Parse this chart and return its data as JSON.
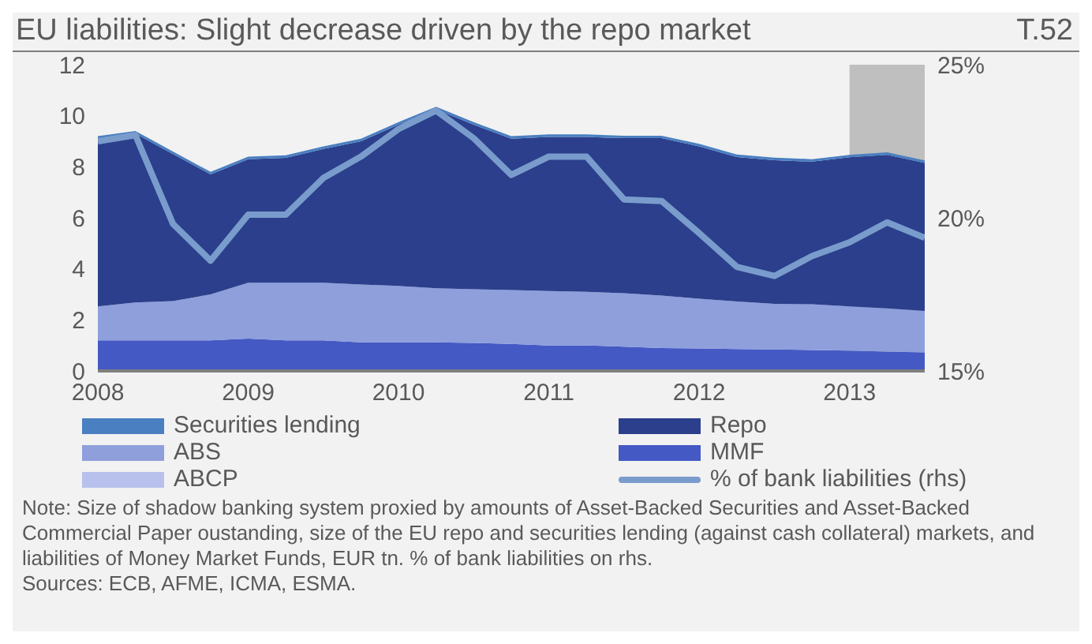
{
  "chart_data": {
    "type": "area",
    "title": "EU liabilities: Slight decrease driven by the repo market",
    "stacked": true,
    "x": [
      2008,
      2008.25,
      2008.5,
      2008.75,
      2009,
      2009.25,
      2009.5,
      2009.75,
      2010,
      2010.25,
      2010.5,
      2010.75,
      2011,
      2011.25,
      2011.5,
      2011.75,
      2012,
      2012.25,
      2012.5,
      2012.75,
      2013,
      2013.25,
      2013.5
    ],
    "series": [
      {
        "name": "MMF",
        "color": "#4459c4",
        "values": [
          1.2,
          1.2,
          1.2,
          1.2,
          1.27,
          1.2,
          1.2,
          1.12,
          1.12,
          1.12,
          1.1,
          1.06,
          1.0,
          1.0,
          0.95,
          0.9,
          0.88,
          0.86,
          0.84,
          0.82,
          0.8,
          0.76,
          0.73
        ]
      },
      {
        "name": "ABCP",
        "color": "#b8c0ec",
        "values": [
          null,
          null,
          null,
          null,
          null,
          null,
          null,
          null,
          null,
          null,
          null,
          null,
          null,
          null,
          null,
          null,
          null,
          null,
          null,
          null,
          null,
          null,
          null
        ]
      },
      {
        "name": "ABS",
        "color": "#8e9fdc",
        "values": [
          1.33,
          1.48,
          1.54,
          1.8,
          2.19,
          2.26,
          2.26,
          2.27,
          2.21,
          2.12,
          2.1,
          2.11,
          2.13,
          2.1,
          2.1,
          2.05,
          1.95,
          1.86,
          1.79,
          1.79,
          1.73,
          1.69,
          1.62
        ]
      },
      {
        "name": "Repo",
        "color": "#2b3f8c",
        "values": [
          6.57,
          6.62,
          5.76,
          4.7,
          4.84,
          4.89,
          5.24,
          5.61,
          6.32,
          7.01,
          6.45,
          5.93,
          6.04,
          6.07,
          6.07,
          6.17,
          5.97,
          5.66,
          5.63,
          5.59,
          5.84,
          6.02,
          5.8
        ]
      },
      {
        "name": "Securities lending",
        "color": "#4a7fc1",
        "values": [
          0.1,
          0.1,
          0.1,
          0.1,
          0.1,
          0.1,
          0.1,
          0.1,
          0.1,
          0.1,
          0.1,
          0.1,
          0.1,
          0.1,
          0.1,
          0.1,
          0.1,
          0.1,
          0.1,
          0.1,
          0.1,
          0.1,
          0.1
        ]
      },
      {
        "name": "% of bank liabilities (rhs)",
        "type": "line",
        "axis": "y2",
        "color": "#7a9ccc",
        "values": [
          22.5,
          22.7,
          19.8,
          18.6,
          20.1,
          20.1,
          21.3,
          22.0,
          22.9,
          23.5,
          22.6,
          21.4,
          22.0,
          22.0,
          20.6,
          20.55,
          19.5,
          18.4,
          18.1,
          18.75,
          19.2,
          19.85,
          19.35
        ]
      }
    ],
    "xlim": [
      2008,
      2013.5
    ],
    "xticks": [
      2008,
      2009,
      2010,
      2011,
      2012,
      2013
    ],
    "ylim": [
      0,
      12
    ],
    "yticks": [
      0,
      2,
      4,
      6,
      8,
      10,
      12
    ],
    "y2lim": [
      15,
      25
    ],
    "y2ticks": [
      {
        "value": 15,
        "label": "15%"
      },
      {
        "value": 20,
        "label": "20%"
      },
      {
        "value": 25,
        "label": "25%"
      }
    ],
    "bands": [
      {
        "axis": "x",
        "from": 2013,
        "to": 2013.5,
        "color": "#bfbfbf"
      }
    ],
    "grid": false,
    "legend": "bottom",
    "marker": "none",
    "line_style": "solid",
    "annotations": [
      "T.52",
      "Note: Size of shadow banking system proxied by amounts of Asset-Backed Securities and Asset-Backed Commercial Paper oustanding, size of the EU repo and securities lending (against cash collateral) markets, and liabilities of Money Market Funds, EUR tn. % of  bank liabilities on rhs.",
      "Sources: ECB, AFME, ICMA, ESMA."
    ]
  }
}
